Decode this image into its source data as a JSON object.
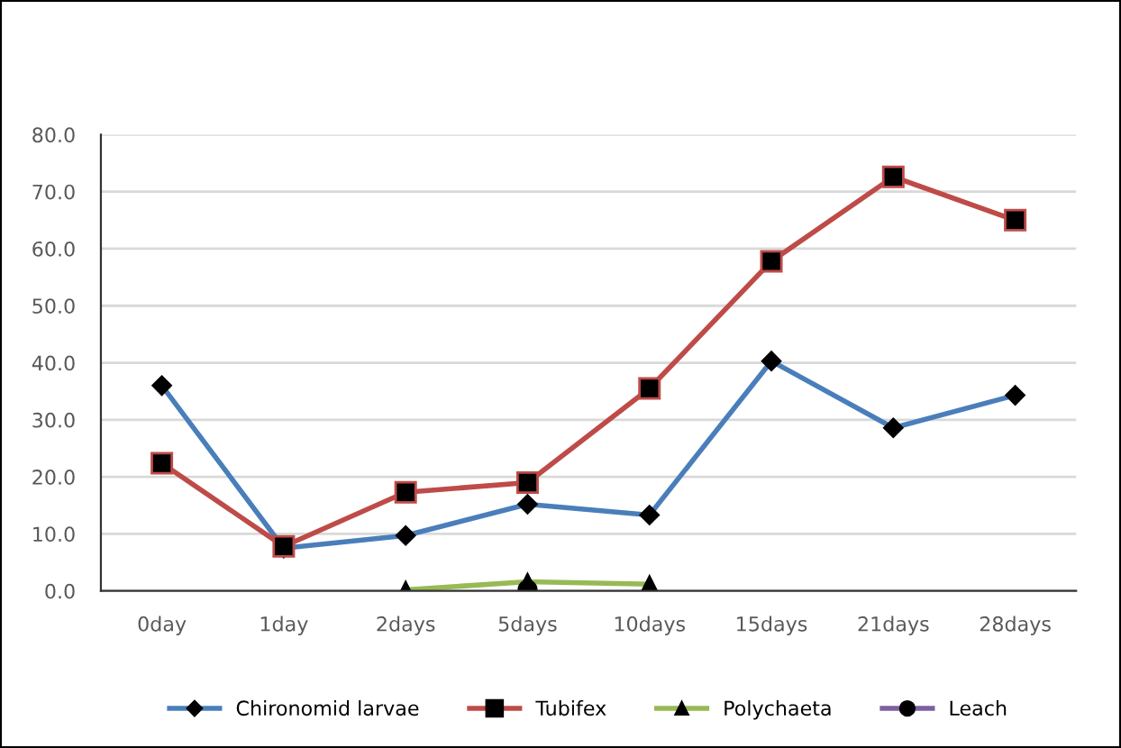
{
  "chart_data": {
    "type": "line",
    "categories": [
      "0day",
      "1day",
      "2days",
      "5days",
      "10days",
      "15days",
      "21days",
      "28days"
    ],
    "series": [
      {
        "name": "Chironomid larvae",
        "color": "#4a7ebb",
        "marker": "diamond",
        "values": [
          36.0,
          7.5,
          9.7,
          15.2,
          13.3,
          40.3,
          28.6,
          34.3
        ]
      },
      {
        "name": "Tubifex",
        "color": "#be4b48",
        "marker": "square",
        "values": [
          22.4,
          7.8,
          17.3,
          19.0,
          35.5,
          57.8,
          72.6,
          65.0
        ]
      },
      {
        "name": "Polychaeta",
        "color": "#98b954",
        "marker": "triangle",
        "values": [
          null,
          null,
          0.2,
          1.6,
          1.2,
          null,
          null,
          null
        ]
      },
      {
        "name": "Leach",
        "color": "#7d60a0",
        "colors": [
          null,
          null,
          null,
          "#000000",
          null,
          null,
          null,
          null
        ],
        "marker": "circle",
        "values": [
          null,
          null,
          null,
          0.2,
          null,
          null,
          null,
          null
        ]
      }
    ],
    "ylim": [
      0,
      80
    ],
    "yticks": [
      {
        "value": 0,
        "label": "0.0"
      },
      {
        "value": 10,
        "label": "10.0"
      },
      {
        "value": 20,
        "label": "20.0"
      },
      {
        "value": 30,
        "label": "30.0"
      },
      {
        "value": 40,
        "label": "40.0"
      },
      {
        "value": 50,
        "label": "50.0"
      },
      {
        "value": 60,
        "label": "60.0"
      },
      {
        "value": 70,
        "label": "70.0"
      },
      {
        "value": 80,
        "label": "80.0"
      }
    ],
    "grid": "y",
    "legend": "bottom"
  }
}
